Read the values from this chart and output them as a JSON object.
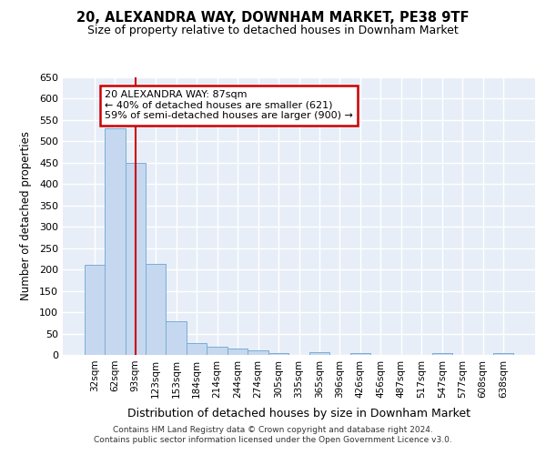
{
  "title1": "20, ALEXANDRA WAY, DOWNHAM MARKET, PE38 9TF",
  "title2": "Size of property relative to detached houses in Downham Market",
  "xlabel": "Distribution of detached houses by size in Downham Market",
  "ylabel": "Number of detached properties",
  "categories": [
    "32sqm",
    "62sqm",
    "93sqm",
    "123sqm",
    "153sqm",
    "184sqm",
    "214sqm",
    "244sqm",
    "274sqm",
    "305sqm",
    "335sqm",
    "365sqm",
    "396sqm",
    "426sqm",
    "456sqm",
    "487sqm",
    "517sqm",
    "547sqm",
    "577sqm",
    "608sqm",
    "638sqm"
  ],
  "values": [
    210,
    530,
    450,
    213,
    78,
    27,
    20,
    14,
    10,
    4,
    0,
    6,
    0,
    4,
    0,
    0,
    0,
    4,
    0,
    0,
    4
  ],
  "bar_color": "#c5d8f0",
  "bar_edge_color": "#7badd4",
  "background_color": "#e8eef8",
  "grid_color": "#ffffff",
  "vline_x": 2,
  "vline_color": "#cc0000",
  "annotation_text": "20 ALEXANDRA WAY: 87sqm\n← 40% of detached houses are smaller (621)\n59% of semi-detached houses are larger (900) →",
  "annotation_box_facecolor": "#ffffff",
  "annotation_box_edgecolor": "#cc0000",
  "footer": "Contains HM Land Registry data © Crown copyright and database right 2024.\nContains public sector information licensed under the Open Government Licence v3.0.",
  "ylim": [
    0,
    650
  ],
  "yticks": [
    0,
    50,
    100,
    150,
    200,
    250,
    300,
    350,
    400,
    450,
    500,
    550,
    600,
    650
  ],
  "fig_width": 6.0,
  "fig_height": 5.0
}
